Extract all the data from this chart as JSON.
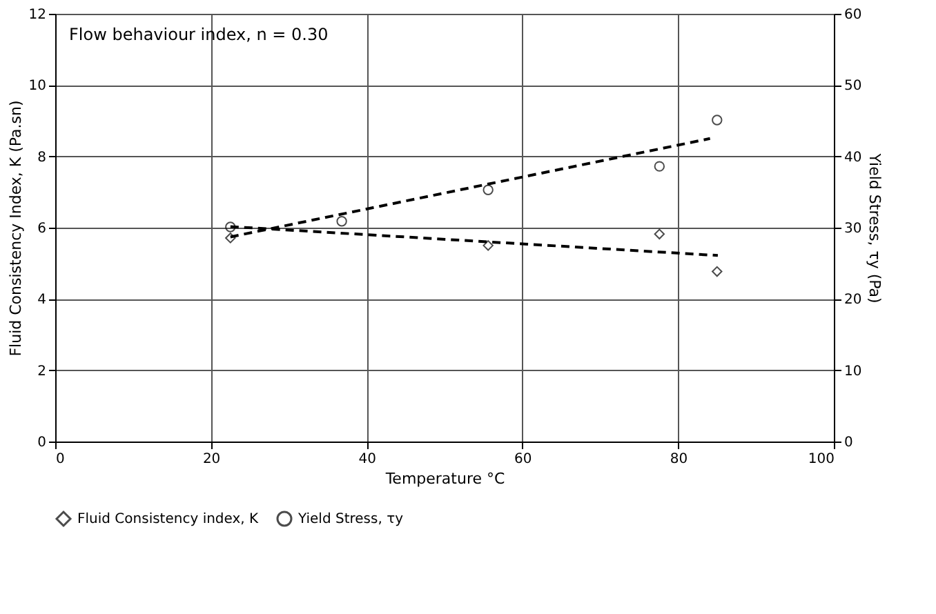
{
  "chart_data": {
    "type": "scatter",
    "xlabel": "Temperature °C",
    "ylabel": "Fluid Consistency Index, K (Pa.sn)",
    "y2label": "Yield Stress, τy (Pa)",
    "annotations": [
      "Flow behaviour index, n = 0.30"
    ],
    "x": [
      22.5,
      36.8,
      55.6,
      77.6,
      85.0
    ],
    "series": [
      {
        "name": "Fluid Consistency index, K",
        "color": "#000000",
        "marker": "diamond",
        "x": [
          22.5,
          55.6,
          77.6,
          85.0
        ],
        "values": [
          5.71,
          5.5,
          5.82,
          4.77
        ]
      },
      {
        "name": "Yield Stress, τy",
        "color": "#000000",
        "marker": "circle",
        "axis": "y2",
        "values": [
          30.1,
          30.9,
          35.3,
          38.6,
          45.1
        ]
      },
      {
        "type": "line",
        "color": "#000000",
        "line_style": "dashed",
        "x": [
          22.5,
          85.1
        ],
        "values": [
          6.03,
          5.22
        ]
      },
      {
        "type": "line",
        "color": "#000000",
        "line_style": "dashed",
        "axis": "y2",
        "x": [
          22.5,
          84.1
        ],
        "values": [
          28.7,
          42.5
        ]
      }
    ],
    "xlim": [
      0,
      100
    ],
    "xticks": [
      0,
      20,
      40,
      60,
      80,
      100
    ],
    "ylim": [
      0,
      12
    ],
    "yticks": [
      0,
      2,
      4,
      6,
      8,
      10,
      12
    ],
    "y2lim": [
      0,
      60
    ],
    "y2ticks": [
      0,
      10,
      20,
      30,
      40,
      50,
      60
    ],
    "grid": true,
    "legend": "bottom"
  }
}
